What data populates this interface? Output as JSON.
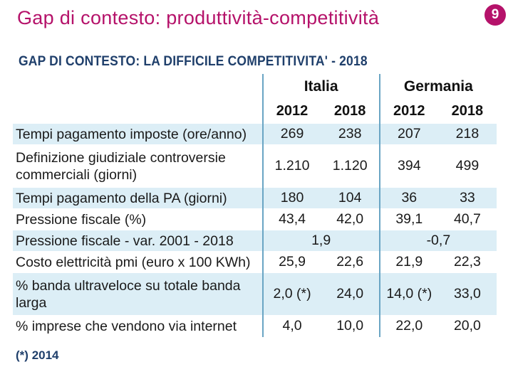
{
  "slide": {
    "title": "Gap di contesto: produttività-competitività",
    "number": "9",
    "accent_color": "#b5126a"
  },
  "table": {
    "title": "GAP DI CONTESTO: LA DIFFICILE COMPETITIVITA' - 2018",
    "countries": [
      "Italia",
      "Germania"
    ],
    "years": [
      "2012",
      "2018",
      "2012",
      "2018"
    ],
    "rows": [
      {
        "label": "Tempi pagamento imposte (ore/anno)",
        "values": [
          "269",
          "238",
          "207",
          "218"
        ]
      },
      {
        "label": "Definizione giudiziale controversie commerciali (giorni)",
        "values": [
          "1.210",
          "1.120",
          "394",
          "499"
        ]
      },
      {
        "label": "Tempi pagamento della PA (giorni)",
        "values": [
          "180",
          "104",
          "36",
          "33"
        ]
      },
      {
        "label": "Pressione fiscale (%)",
        "values": [
          "43,4",
          "42,0",
          "39,1",
          "40,7"
        ]
      },
      {
        "label": "Pressione fiscale - var. 2001 - 2018",
        "merged_values": [
          "1,9",
          "-0,7"
        ]
      },
      {
        "label": "Costo elettricità pmi (euro x 100 KWh)",
        "values": [
          "25,9",
          "22,6",
          "21,9",
          "22,3"
        ]
      },
      {
        "label": "% banda ultraveloce su totale banda larga",
        "values": [
          "2,0 (*)",
          "24,0",
          "14,0 (*)",
          "33,0"
        ]
      },
      {
        "label": "% imprese che vendono via internet",
        "values": [
          "4,0",
          "10,0",
          "22,0",
          "20,0"
        ]
      }
    ],
    "footnote_marker": "(*)",
    "footnote_text": "2014",
    "shade_color": "#dceef6",
    "title_color": "#1f3f6b"
  }
}
